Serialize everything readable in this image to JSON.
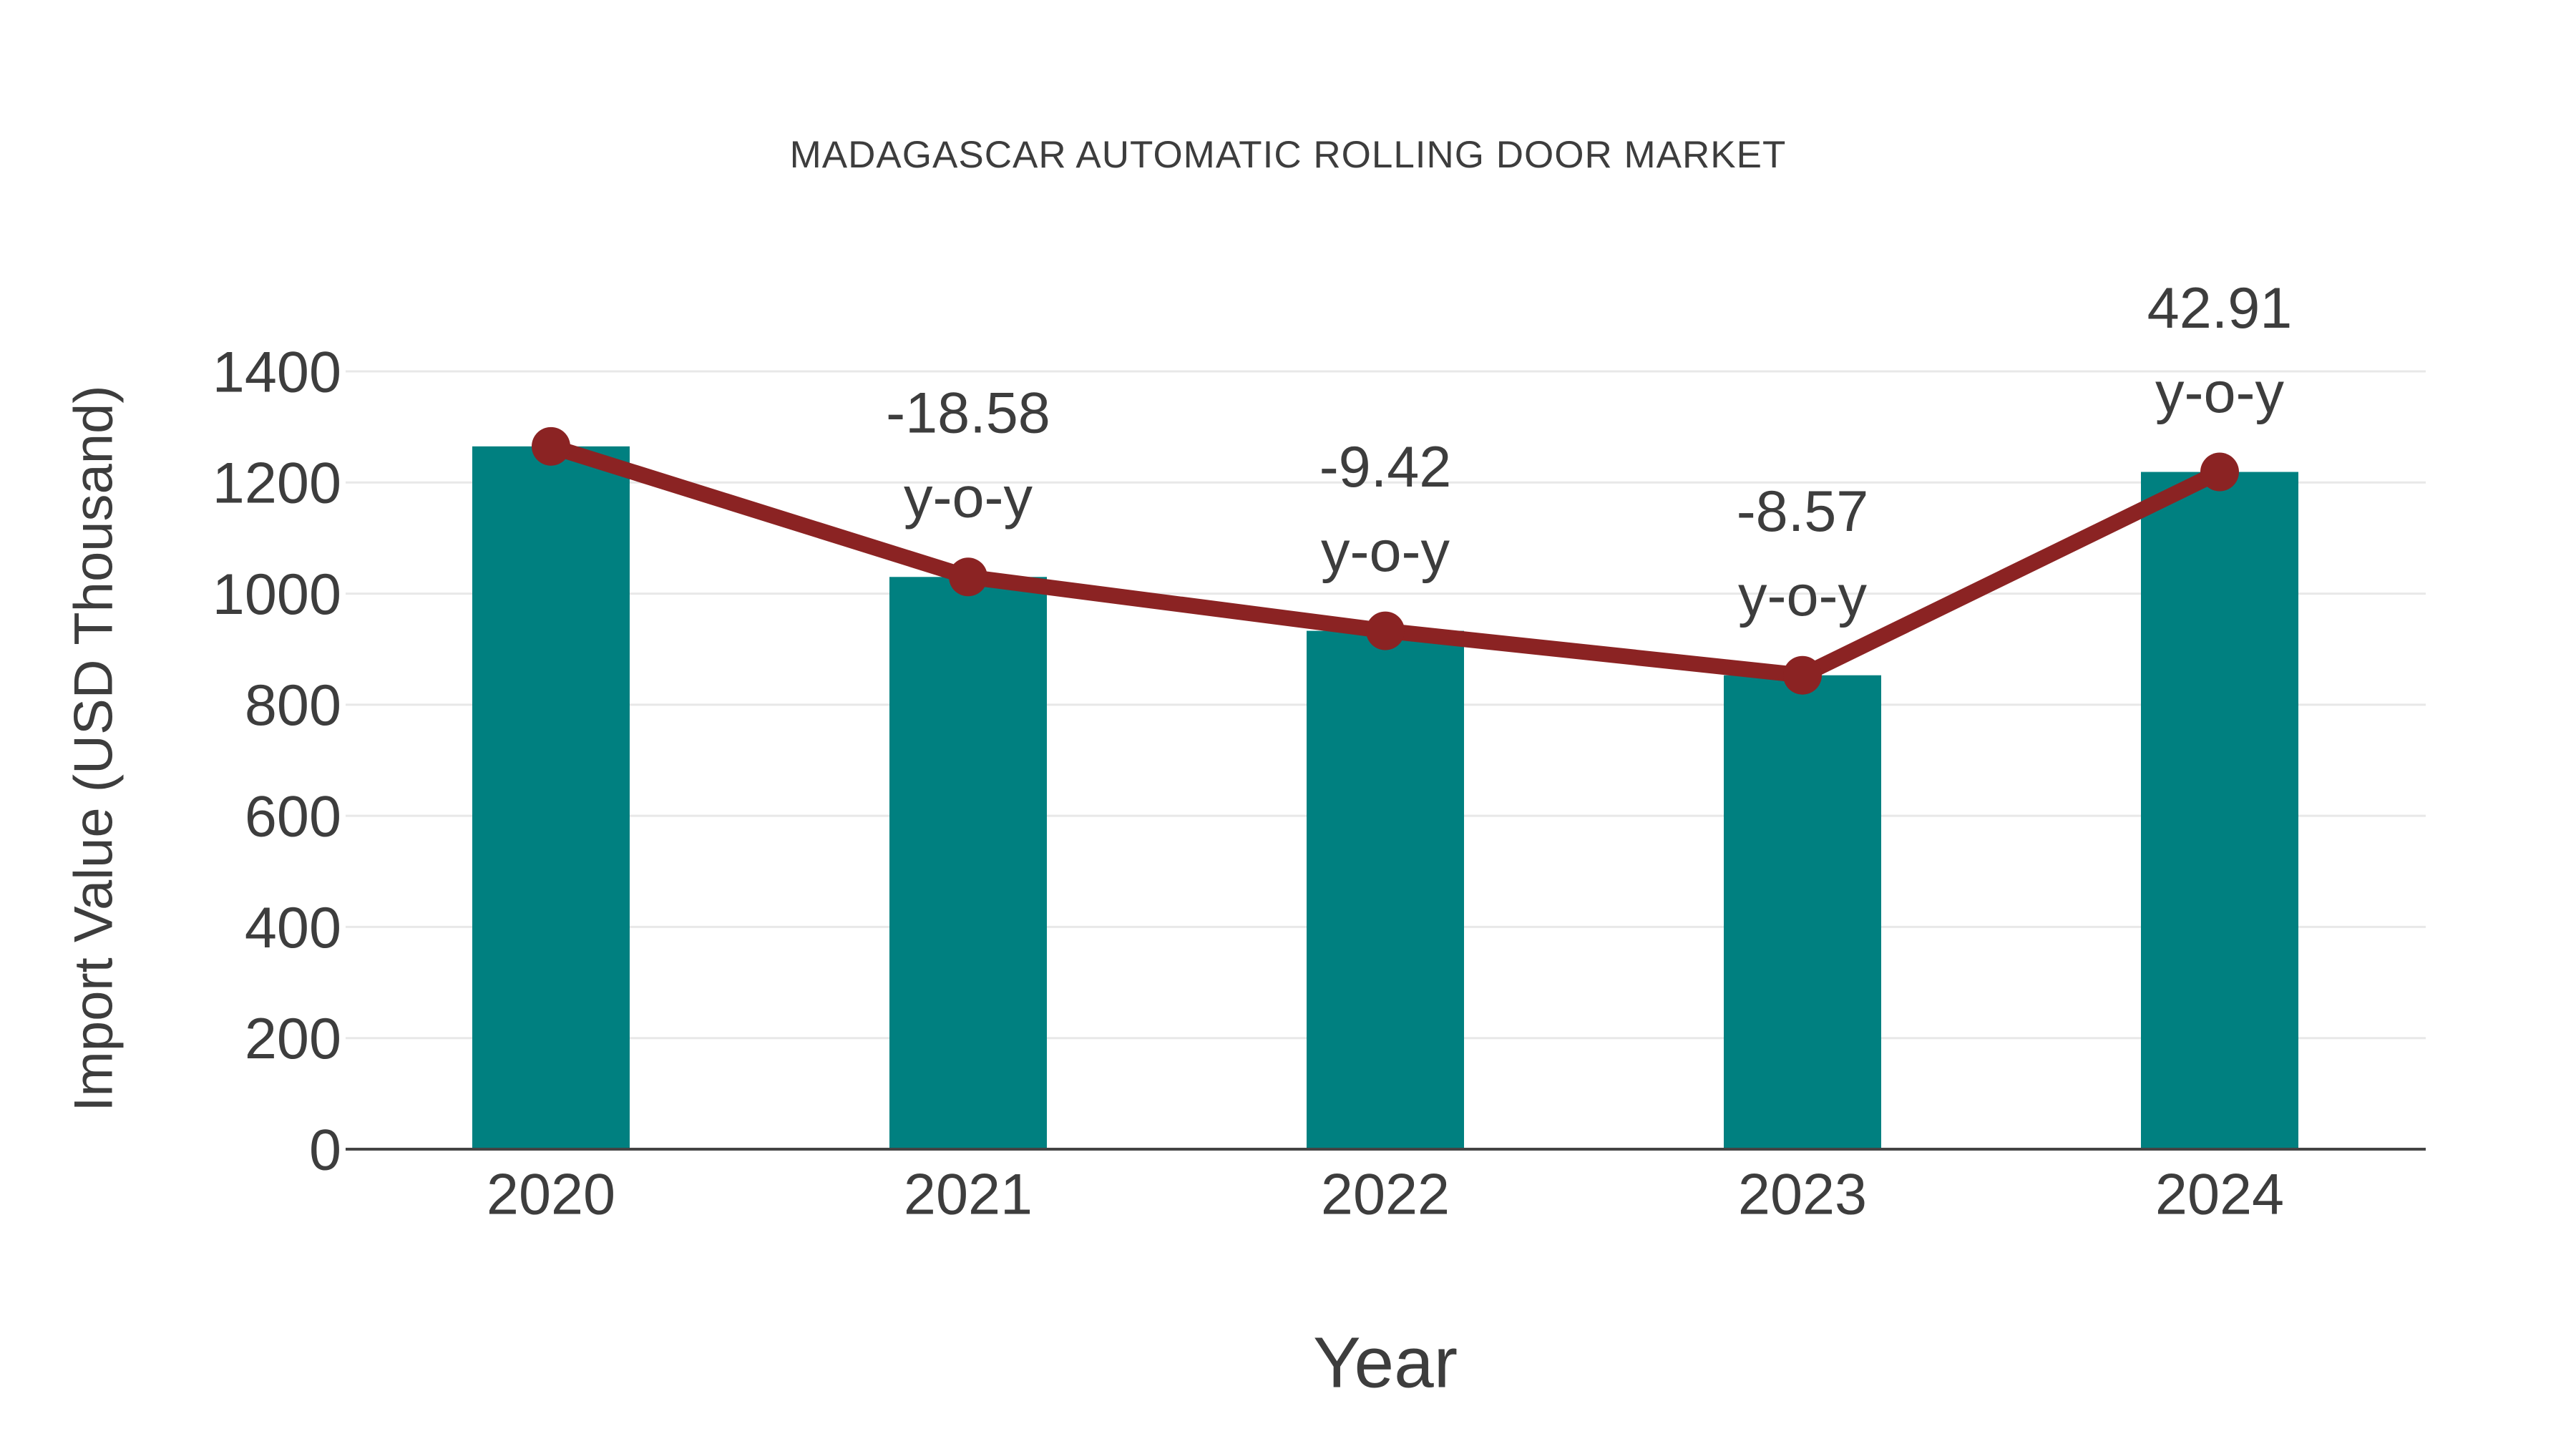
{
  "title": "MADAGASCAR AUTOMATIC ROLLING DOOR MARKET",
  "chart_data": {
    "type": "bar",
    "title": "MADAGASCAR AUTOMATIC ROLLING DOOR MARKET",
    "xlabel": "Year",
    "ylabel": "Import Value (USD Thousand)",
    "categories": [
      "2020",
      "2021",
      "2022",
      "2023",
      "2024"
    ],
    "series": [
      {
        "name": "Import Value (USD Thousand)",
        "type": "bar",
        "values": [
          1265,
          1030,
          933,
          853,
          1219
        ]
      },
      {
        "name": "y-o-y change marker line",
        "type": "line",
        "values": [
          1265,
          1030,
          933,
          853,
          1219
        ]
      }
    ],
    "annotations": [
      {
        "category": "2021",
        "value_text": "-18.58",
        "suffix_text": "y-o-y"
      },
      {
        "category": "2022",
        "value_text": "-9.42",
        "suffix_text": "y-o-y"
      },
      {
        "category": "2023",
        "value_text": "-8.57",
        "suffix_text": "y-o-y"
      },
      {
        "category": "2024",
        "value_text": "42.91",
        "suffix_text": "y-o-y"
      }
    ],
    "yticks": [
      0,
      200,
      400,
      600,
      800,
      1000,
      1200,
      1400
    ],
    "ylim": [
      0,
      1500
    ],
    "grid": true,
    "legend_position": "none",
    "colors": {
      "bar": "#008080",
      "line": "#8B2323",
      "marker": "#8B2323",
      "text": "#3d3d3d",
      "grid": "#e8e8e8",
      "axis": "#444444",
      "background": "#ffffff"
    }
  }
}
